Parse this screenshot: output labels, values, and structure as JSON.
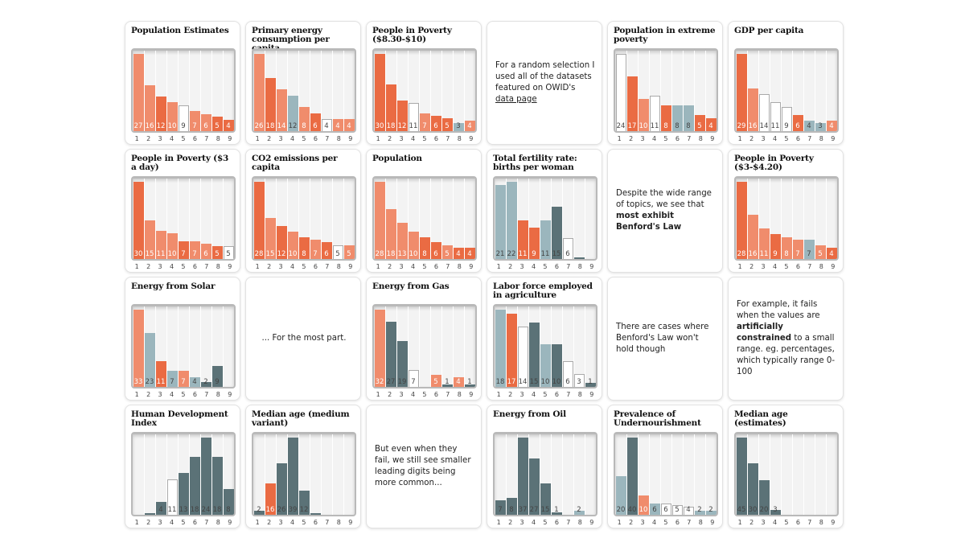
{
  "palette": {
    "L": "#f08c6c",
    "D": "#ea6b43",
    "W": "#ffffff",
    "T": "#9bb6bd",
    "S": "#5b7277"
  },
  "chart_data": [
    {
      "type": "bar",
      "title": "Population Estimates",
      "categories": [
        "1",
        "2",
        "3",
        "4",
        "5",
        "6",
        "7",
        "8",
        "9"
      ],
      "values": [
        27,
        16,
        12,
        10,
        9,
        7,
        6,
        5,
        4
      ],
      "labels": [
        "27",
        "16",
        "12",
        "10",
        "9",
        "7",
        "6",
        "5",
        "4"
      ],
      "colors": [
        "L",
        "L",
        "D",
        "L",
        "W",
        "L",
        "L",
        "D",
        "D"
      ]
    },
    {
      "type": "bar",
      "title": "Primary energy consumption per capita",
      "categories": [
        "1",
        "2",
        "3",
        "4",
        "5",
        "6",
        "7",
        "8",
        "9"
      ],
      "values": [
        26,
        18,
        14,
        12,
        8,
        6,
        4,
        4,
        4
      ],
      "labels": [
        "26",
        "18",
        "14",
        "12",
        "8",
        "6",
        "4",
        "4",
        "4"
      ],
      "colors": [
        "L",
        "D",
        "L",
        "T",
        "L",
        "D",
        "W",
        "L",
        "L"
      ]
    },
    {
      "type": "bar",
      "title": "People in Poverty ($8.30-$10)",
      "categories": [
        "1",
        "2",
        "3",
        "4",
        "5",
        "6",
        "7",
        "8",
        "9"
      ],
      "values": [
        30,
        18,
        12,
        11,
        7,
        6,
        5,
        3,
        4
      ],
      "labels": [
        "30",
        "18",
        "12",
        "11",
        "7",
        "6",
        "5",
        "3",
        "4"
      ],
      "colors": [
        "D",
        "D",
        "D",
        "W",
        "L",
        "D",
        "D",
        "T",
        "L"
      ]
    },
    {
      "type": "text",
      "segments": [
        {
          "text": "For a random selection I used all of the datasets featured on OWID's "
        },
        {
          "text": "data page",
          "link": true
        }
      ]
    },
    {
      "type": "bar",
      "title": "Population in extreme poverty",
      "categories": [
        "1",
        "2",
        "3",
        "4",
        "5",
        "6",
        "7",
        "8",
        "9"
      ],
      "values": [
        24,
        17,
        10,
        11,
        8,
        8,
        8,
        5,
        4
      ],
      "labels": [
        "24",
        "17",
        "10",
        "11",
        "8",
        "8",
        "8",
        "5",
        "4"
      ],
      "colors": [
        "W",
        "D",
        "L",
        "W",
        "D",
        "T",
        "T",
        "D",
        "D"
      ]
    },
    {
      "type": "bar",
      "title": "GDP per capita",
      "categories": [
        "1",
        "2",
        "3",
        "4",
        "5",
        "6",
        "7",
        "8",
        "9"
      ],
      "values": [
        29,
        16,
        14,
        11,
        9,
        6,
        4,
        3,
        4
      ],
      "labels": [
        "29",
        "16",
        "14",
        "11",
        "9",
        "6",
        "4",
        "3",
        "4"
      ],
      "colors": [
        "D",
        "L",
        "W",
        "W",
        "W",
        "D",
        "T",
        "T",
        "L"
      ]
    },
    {
      "type": "bar",
      "title": "People in Poverty ($3 a day)",
      "categories": [
        "1",
        "2",
        "3",
        "4",
        "5",
        "6",
        "7",
        "8",
        "9"
      ],
      "values": [
        30,
        15,
        11,
        10,
        7,
        7,
        6,
        5,
        5
      ],
      "labels": [
        "30",
        "15",
        "11",
        "10",
        "7",
        "7",
        "6",
        "5",
        "5"
      ],
      "colors": [
        "D",
        "L",
        "L",
        "L",
        "D",
        "L",
        "L",
        "D",
        "W"
      ]
    },
    {
      "type": "bar",
      "title": "CO2 emissions per capita",
      "categories": [
        "1",
        "2",
        "3",
        "4",
        "5",
        "6",
        "7",
        "8",
        "9"
      ],
      "values": [
        28,
        15,
        12,
        10,
        8,
        7,
        6,
        5,
        5
      ],
      "labels": [
        "28",
        "15",
        "12",
        "10",
        "8",
        "7",
        "6",
        "5",
        "5"
      ],
      "colors": [
        "D",
        "L",
        "D",
        "L",
        "D",
        "L",
        "D",
        "W",
        "L"
      ]
    },
    {
      "type": "bar",
      "title": "Population",
      "categories": [
        "1",
        "2",
        "3",
        "4",
        "5",
        "6",
        "7",
        "8",
        "9"
      ],
      "values": [
        28,
        18,
        13,
        10,
        8,
        6,
        5,
        4,
        4
      ],
      "labels": [
        "28",
        "18",
        "13",
        "10",
        "8",
        "6",
        "5",
        "4",
        "4"
      ],
      "colors": [
        "L",
        "L",
        "L",
        "L",
        "D",
        "D",
        "L",
        "D",
        "D"
      ]
    },
    {
      "type": "bar",
      "title": "Total fertility rate: births per woman",
      "categories": [
        "1",
        "2",
        "3",
        "4",
        "5",
        "6",
        "7",
        "8",
        "9"
      ],
      "values": [
        21,
        22,
        11,
        9,
        11,
        15,
        6,
        0.3,
        0
      ],
      "labels": [
        "21",
        "22",
        "11",
        "9",
        "11",
        "15",
        "6",
        "",
        ""
      ],
      "colors": [
        "T",
        "T",
        "D",
        "D",
        "T",
        "S",
        "W",
        "S",
        "S"
      ]
    },
    {
      "type": "text",
      "segments": [
        {
          "text": "Despite the wide range of topics, we see that "
        },
        {
          "text": "most exhibit Benford's Law",
          "bold": true
        }
      ]
    },
    {
      "type": "bar",
      "title": "People in Poverty ($3-$4.20)",
      "categories": [
        "1",
        "2",
        "3",
        "4",
        "5",
        "6",
        "7",
        "8",
        "9"
      ],
      "values": [
        28,
        16,
        11,
        9,
        8,
        7,
        7,
        5,
        4
      ],
      "labels": [
        "28",
        "16",
        "11",
        "9",
        "8",
        "7",
        "7",
        "5",
        "4"
      ],
      "colors": [
        "D",
        "L",
        "L",
        "D",
        "L",
        "L",
        "T",
        "L",
        "D"
      ]
    },
    {
      "type": "bar",
      "title": "Energy from Solar",
      "categories": [
        "1",
        "2",
        "3",
        "4",
        "5",
        "6",
        "7",
        "8",
        "9"
      ],
      "values": [
        33,
        23,
        11,
        7,
        7,
        4,
        2,
        9,
        0
      ],
      "labels": [
        "33",
        "23",
        "11",
        "7",
        "7",
        "4",
        "2",
        "9",
        ""
      ],
      "colors": [
        "L",
        "T",
        "D",
        "T",
        "L",
        "T",
        "S",
        "S",
        "S"
      ]
    },
    {
      "type": "text",
      "center": true,
      "segments": [
        {
          "text": "... For the most part."
        }
      ]
    },
    {
      "type": "bar",
      "title": "Energy from Gas",
      "categories": [
        "1",
        "2",
        "3",
        "4",
        "5",
        "6",
        "7",
        "8",
        "9"
      ],
      "values": [
        32,
        27,
        19,
        7,
        0,
        5,
        1,
        4,
        1
      ],
      "labels": [
        "32",
        "27",
        "19",
        "7",
        "",
        "5",
        "1",
        "4",
        "1"
      ],
      "colors": [
        "L",
        "S",
        "S",
        "W",
        "S",
        "L",
        "S",
        "L",
        "S"
      ]
    },
    {
      "type": "bar",
      "title": "Labor force employed in agriculture",
      "categories": [
        "1",
        "2",
        "3",
        "4",
        "5",
        "6",
        "7",
        "8",
        "9"
      ],
      "values": [
        18,
        17,
        14,
        15,
        10,
        10,
        6,
        3,
        1
      ],
      "labels": [
        "18",
        "17",
        "14",
        "15",
        "10",
        "10",
        "6",
        "3",
        "1"
      ],
      "colors": [
        "T",
        "D",
        "W",
        "S",
        "T",
        "S",
        "W",
        "W",
        "S"
      ]
    },
    {
      "type": "text",
      "segments": [
        {
          "text": "There are cases where Benford's Law won't hold though"
        }
      ]
    },
    {
      "type": "text",
      "segments": [
        {
          "text": "For example, it fails when the values are "
        },
        {
          "text": "artificially constrained",
          "bold": true
        },
        {
          "text": " to a small range. eg. percentages, which typically range 0-100"
        }
      ]
    },
    {
      "type": "bar",
      "title": "Human Development Index",
      "categories": [
        "1",
        "2",
        "3",
        "4",
        "5",
        "6",
        "7",
        "8",
        "9"
      ],
      "values": [
        0,
        0.5,
        4,
        11,
        13,
        18,
        24,
        18,
        8
      ],
      "labels": [
        "",
        "",
        "4",
        "11",
        "13",
        "18",
        "24",
        "18",
        "8"
      ],
      "colors": [
        "S",
        "S",
        "S",
        "W",
        "S",
        "S",
        "S",
        "S",
        "S"
      ]
    },
    {
      "type": "bar",
      "title": "Median age (medium variant)",
      "categories": [
        "1",
        "2",
        "3",
        "4",
        "5",
        "6",
        "7",
        "8",
        "9"
      ],
      "values": [
        2,
        16,
        26,
        39,
        12,
        0.3,
        0,
        0,
        0
      ],
      "labels": [
        "2",
        "16",
        "26",
        "39",
        "12",
        "",
        "",
        "",
        ""
      ],
      "colors": [
        "S",
        "D",
        "S",
        "S",
        "S",
        "S",
        "S",
        "S",
        "S"
      ]
    },
    {
      "type": "text",
      "segments": [
        {
          "text": "But even when they fail, we still see smaller leading digits being more common..."
        }
      ]
    },
    {
      "type": "bar",
      "title": "Energy from Oil",
      "categories": [
        "1",
        "2",
        "3",
        "4",
        "5",
        "6",
        "7",
        "8",
        "9"
      ],
      "values": [
        7,
        8,
        37,
        27,
        15,
        1,
        0,
        2,
        0
      ],
      "labels": [
        "7",
        "8",
        "37",
        "27",
        "15",
        "1",
        "",
        "2",
        ""
      ],
      "colors": [
        "S",
        "S",
        "S",
        "S",
        "S",
        "S",
        "S",
        "T",
        "S"
      ]
    },
    {
      "type": "bar",
      "title": "Prevalence of Undernourishment",
      "categories": [
        "1",
        "2",
        "3",
        "4",
        "5",
        "6",
        "7",
        "8",
        "9"
      ],
      "values": [
        20,
        40,
        10,
        6,
        6,
        5,
        4,
        2,
        2
      ],
      "labels": [
        "20",
        "40",
        "10",
        "6",
        "6",
        "5",
        "4",
        "2",
        "2"
      ],
      "colors": [
        "T",
        "S",
        "L",
        "T",
        "W",
        "W",
        "W",
        "T",
        "T"
      ]
    },
    {
      "type": "bar",
      "title": "Median age (estimates)",
      "categories": [
        "1",
        "2",
        "3",
        "4",
        "5",
        "6",
        "7",
        "8",
        "9"
      ],
      "values": [
        45,
        30,
        20,
        3,
        0,
        0,
        0,
        0,
        0
      ],
      "labels": [
        "45",
        "30",
        "20",
        "3",
        "",
        "",
        "",
        "",
        ""
      ],
      "colors": [
        "S",
        "S",
        "S",
        "S",
        "S",
        "S",
        "S",
        "S",
        "S"
      ]
    }
  ]
}
